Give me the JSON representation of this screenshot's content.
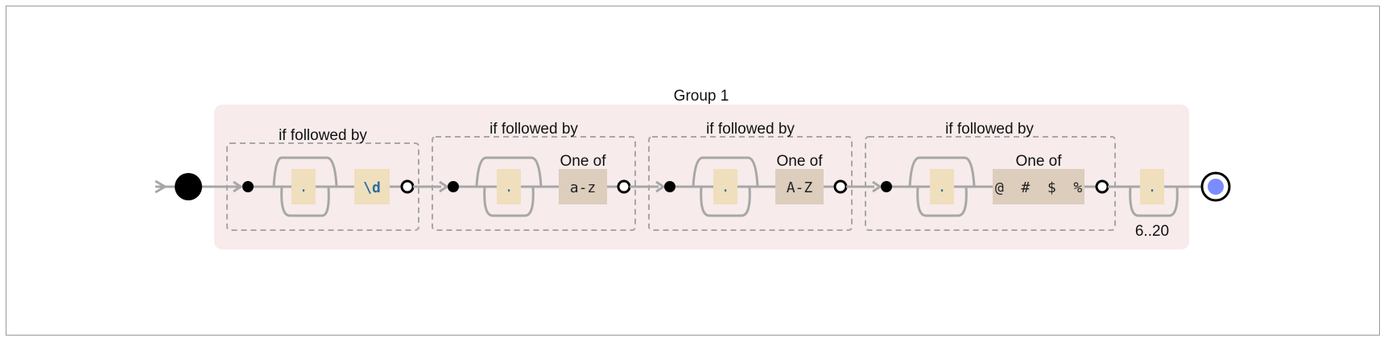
{
  "diagram": {
    "group": {
      "title": "Group 1"
    },
    "assertions": [
      {
        "label": "if followed by",
        "literal": ".",
        "item_title": "",
        "item": "\\d",
        "item_kind": "escape"
      },
      {
        "label": "if followed by",
        "literal": ".",
        "item_title": "One of",
        "item": "a-z",
        "item_kind": "charset"
      },
      {
        "label": "if followed by",
        "literal": ".",
        "item_title": "One of",
        "item": "A-Z",
        "item_kind": "charset"
      },
      {
        "label": "if followed by",
        "literal": ".",
        "item_title": "One of",
        "item": "@  #  $  %",
        "item_kind": "charset"
      }
    ],
    "final": {
      "literal": ".",
      "repeat": "6..20"
    },
    "colors": {
      "group_fill": "#f7ebeb",
      "literal_fill": "#efdfbd",
      "charset_fill": "#dccdbd",
      "escape_text": "#2e6e9e",
      "wire": "#a7a7a7",
      "end_fill": "#7b8cff"
    }
  }
}
